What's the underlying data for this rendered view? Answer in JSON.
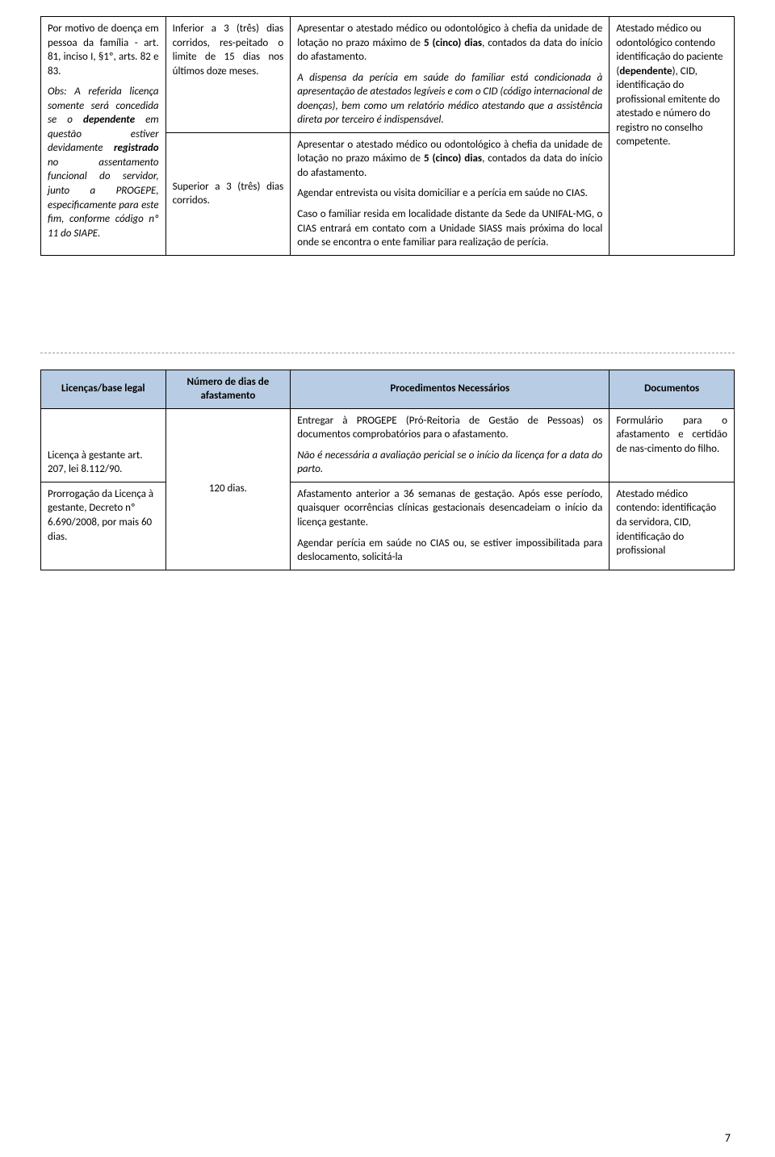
{
  "table1": {
    "row1": {
      "col1_part1": "Por motivo de doença em pessoa da família - art. 81, inciso I, §1º, arts. 82 e 83.",
      "col1_part2_prefix": "Obs: A referida licença somente será concedida se o ",
      "col1_part2_bold1": "dependente",
      "col1_part2_mid1": " em questão estiver devidamente ",
      "col1_part2_bold2": "registrado",
      "col1_part2_mid2": " no assentamento funcional do servidor, junto a PROGEPE, especificamente para este fim, conforme código nº 11 do SIAPE.",
      "col2": "Inferior a 3 (três) dias corridos, res-peitado o limite de 15 dias nos últimos doze meses.",
      "col3_p1_a": "Apresentar o atestado médico ou odontológico à chefia da unidade de lotação no prazo máximo de ",
      "col3_p1_b": "5 (cinco) dias",
      "col3_p1_c": ", contados da data do início do afastamento.",
      "col3_p2": "A dispensa da perícia em saúde do familiar está condicionada à apresentação de atestados legíveis e com o CID (código internacional de doenças), bem como um relatório médico atestando que a assistência direta por terceiro é indispensável.",
      "col4_a": "Atestado médico ou odontológico contendo identificação do paciente (",
      "col4_b": "dependente",
      "col4_c": "), CID, identificação do profissional emitente do atestado e número do registro no conselho competente."
    },
    "row2": {
      "col2": "Superior a 3 (três) dias corridos.",
      "col3_p1_a": "Apresentar o atestado médico ou odontológico à chefia da unidade de lotação no prazo máximo de ",
      "col3_p1_b": "5 (cinco) dias",
      "col3_p1_c": ", contados da data do início do afastamento.",
      "col3_p2": "Agendar entrevista ou visita domiciliar e a perícia em saúde no CIAS.",
      "col3_p3": "Caso o familiar resida em localidade distante da Sede da UNIFAL-MG, o CIAS entrará em contato com a Unidade SIASS mais próxima do local onde se encontra o ente familiar para realização de perícia."
    }
  },
  "table2": {
    "headers": {
      "c1": "Licenças/base legal",
      "c2": "Número de dias de afastamento",
      "c3": "Procedimentos Necessários",
      "c4": "Documentos"
    },
    "row1": {
      "col1": "Licença à gestante art. 207, lei 8.112/90.",
      "col3_p1": "Entregar à PROGEPE (Pró-Reitoria de Gestão de Pessoas) os documentos comprobatórios para o afastamento.",
      "col3_p2": "Não é necessária a avaliação pericial se o início da licença for a data do parto.",
      "col4": "Formulário para o afastamento e certidão de nas-cimento do filho."
    },
    "row2": {
      "col1": "Prorrogação da Licença à gestante, Decreto nº 6.690/2008, por mais 60 dias.",
      "col2": "120 dias.",
      "col3_p1": "Afastamento anterior a 36 semanas de gestação. Após esse período, quaisquer ocorrências clínicas gestacionais desencadeiam o início da licença gestante.",
      "col3_p2": "Agendar perícia em saúde no CIAS ou, se estiver impossibilitada para deslocamento, solicitá-la",
      "col4": "Atestado médico contendo: identificação da servidora, CID, identificação do profissional"
    }
  },
  "pageNumber": "7"
}
